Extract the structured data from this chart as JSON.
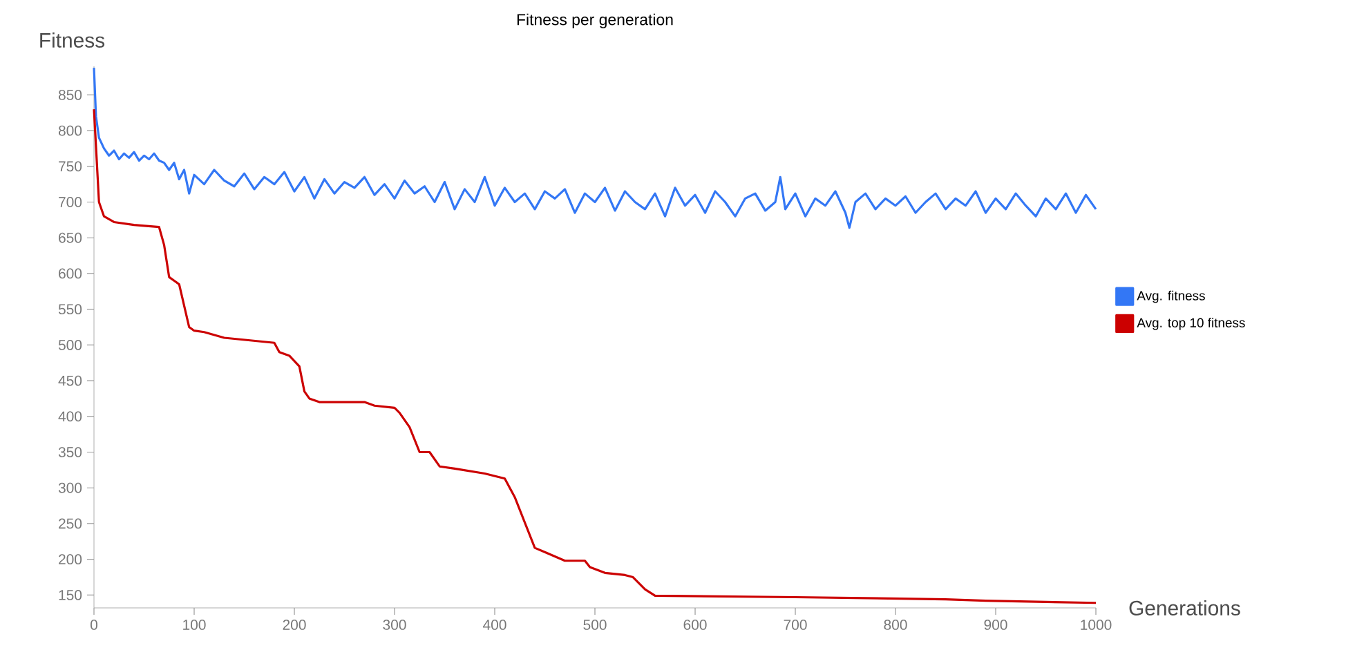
{
  "chart_data": {
    "type": "line",
    "title": "Fitness per generation",
    "xlabel": "Generations",
    "ylabel": "Fitness",
    "xlim": [
      0,
      1000
    ],
    "ylim": [
      132,
      890
    ],
    "xticks": [
      0,
      100,
      200,
      300,
      400,
      500,
      600,
      700,
      800,
      900,
      1000
    ],
    "yticks": [
      150,
      200,
      250,
      300,
      350,
      400,
      450,
      500,
      550,
      600,
      650,
      700,
      750,
      800,
      850
    ],
    "legend": "right",
    "series": [
      {
        "name": "Avg. fitness",
        "color": "#3377f5",
        "x": [
          0,
          2,
          5,
          10,
          15,
          20,
          25,
          30,
          35,
          40,
          45,
          50,
          55,
          60,
          65,
          70,
          75,
          80,
          85,
          90,
          95,
          100,
          110,
          120,
          130,
          140,
          150,
          160,
          170,
          180,
          190,
          200,
          210,
          220,
          230,
          240,
          250,
          260,
          270,
          280,
          290,
          300,
          310,
          320,
          330,
          340,
          350,
          360,
          370,
          380,
          390,
          400,
          410,
          420,
          430,
          440,
          450,
          460,
          470,
          480,
          490,
          500,
          510,
          520,
          530,
          540,
          550,
          560,
          570,
          580,
          590,
          600,
          610,
          620,
          630,
          640,
          650,
          660,
          670,
          680,
          685,
          690,
          700,
          710,
          720,
          730,
          740,
          750,
          754,
          760,
          770,
          780,
          790,
          800,
          810,
          820,
          830,
          840,
          850,
          860,
          870,
          880,
          890,
          900,
          910,
          920,
          930,
          940,
          950,
          960,
          970,
          980,
          990,
          1000
        ],
        "values": [
          888,
          820,
          790,
          775,
          765,
          772,
          760,
          768,
          762,
          770,
          758,
          765,
          760,
          768,
          758,
          755,
          745,
          755,
          732,
          745,
          712,
          738,
          725,
          745,
          730,
          722,
          740,
          718,
          735,
          725,
          742,
          715,
          735,
          705,
          732,
          712,
          728,
          720,
          735,
          710,
          725,
          705,
          730,
          712,
          722,
          700,
          728,
          690,
          718,
          700,
          735,
          695,
          720,
          700,
          712,
          690,
          715,
          705,
          718,
          685,
          712,
          700,
          720,
          688,
          715,
          700,
          690,
          712,
          680,
          720,
          695,
          710,
          685,
          715,
          700,
          680,
          705,
          712,
          688,
          700,
          735,
          690,
          712,
          680,
          705,
          695,
          715,
          685,
          664,
          700,
          712,
          690,
          705,
          695,
          708,
          685,
          700,
          712,
          690,
          705,
          695,
          715,
          685,
          705,
          690,
          712,
          695,
          680,
          705,
          690,
          712,
          685,
          710,
          690
        ]
      },
      {
        "name": "Avg. top 10 fitness",
        "color": "#cc0000",
        "x": [
          0,
          5,
          10,
          20,
          40,
          65,
          70,
          75,
          85,
          95,
          100,
          110,
          130,
          180,
          185,
          195,
          205,
          210,
          215,
          225,
          270,
          280,
          300,
          305,
          315,
          325,
          335,
          345,
          360,
          390,
          410,
          420,
          440,
          450,
          470,
          490,
          495,
          510,
          530,
          538,
          550,
          560,
          700,
          850,
          890,
          1000
        ],
        "values": [
          830,
          700,
          680,
          672,
          668,
          665,
          640,
          595,
          585,
          525,
          520,
          518,
          510,
          503,
          490,
          485,
          470,
          435,
          425,
          420,
          420,
          415,
          412,
          405,
          385,
          350,
          350,
          330,
          327,
          320,
          313,
          287,
          216,
          210,
          198,
          198,
          189,
          181,
          178,
          175,
          158,
          149,
          147,
          144,
          142,
          139
        ]
      }
    ]
  }
}
